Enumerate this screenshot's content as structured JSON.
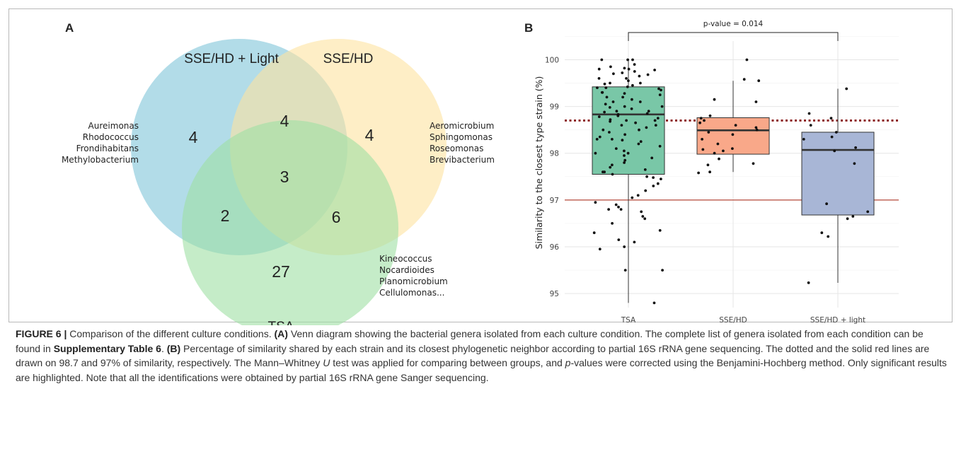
{
  "panel_a": {
    "letter": "A",
    "sets": [
      "SSE/HD + Light",
      "SSE/HD",
      "TSA"
    ],
    "colors": {
      "light": "#7ec4d8",
      "ssehd": "#fde3a0",
      "tsa": "#9edfa4"
    },
    "counts": {
      "light_only": "4",
      "light_ssehd": "4",
      "ssehd_only": "4",
      "all_three": "3",
      "light_tsa": "2",
      "ssehd_tsa": "6",
      "tsa_only": "27"
    },
    "genera_light": [
      "Aureimonas",
      "Rhodococcus",
      "Frondihabitans",
      "Methylobacterium"
    ],
    "genera_ssehd": [
      "Aeromicrobium",
      "Sphingomonas",
      "Roseomonas",
      "Brevibacterium"
    ],
    "genera_tsa": [
      "Kineococcus",
      "Nocardioides",
      "Planomicrobium",
      "Cellulomonas..."
    ]
  },
  "panel_b": {
    "letter": "B",
    "pvalue": "p-value = 0.014",
    "ylabel": "Similarity to the closest type strain (%)"
  },
  "chart_data": {
    "type": "box",
    "categories": [
      "TSA",
      "SSE/HD",
      "SSE/HD + light"
    ],
    "ylabel": "Similarity to the closest type strain (%)",
    "ylim": [
      94.7,
      100.4
    ],
    "yticks": [
      95,
      96,
      97,
      98,
      99,
      100
    ],
    "reference_lines": [
      {
        "value": 98.7,
        "style": "dotted",
        "color": "#8b1a1a"
      },
      {
        "value": 97,
        "style": "solid",
        "color": "#b5483a"
      }
    ],
    "boxes": [
      {
        "category": "TSA",
        "min": 94.8,
        "q1": 97.55,
        "median": 98.83,
        "q3": 99.42,
        "max": 100.0,
        "color": "#79c7a7"
      },
      {
        "category": "SSE/HD",
        "min": 97.6,
        "q1": 97.98,
        "median": 98.49,
        "q3": 98.76,
        "max": 99.55,
        "color": "#f9a889"
      },
      {
        "category": "SSE/HD + light",
        "min": 95.23,
        "q1": 96.68,
        "median": 98.07,
        "q3": 98.45,
        "max": 99.38,
        "color": "#a8b6d6"
      }
    ],
    "points": {
      "TSA": [
        100.0,
        100.0,
        100.0,
        99.85,
        99.82,
        99.8,
        99.8,
        99.78,
        99.75,
        99.72,
        99.7,
        99.68,
        99.65,
        99.6,
        99.55,
        99.5,
        99.5,
        99.48,
        99.45,
        99.42,
        99.4,
        99.4,
        99.38,
        99.35,
        99.3,
        99.28,
        99.25,
        99.2,
        99.2,
        99.15,
        99.1,
        99.1,
        99.05,
        99.0,
        99.0,
        98.98,
        98.95,
        98.9,
        98.88,
        98.85,
        98.83,
        98.8,
        98.78,
        98.75,
        98.72,
        98.7,
        98.7,
        98.68,
        98.65,
        98.6,
        98.55,
        98.5,
        98.5,
        98.45,
        98.4,
        98.35,
        98.3,
        98.28,
        98.25,
        98.2,
        98.15,
        98.1,
        98.05,
        98.0,
        97.95,
        97.9,
        97.85,
        97.8,
        97.75,
        97.7,
        97.65,
        97.6,
        97.55,
        97.5,
        97.48,
        97.45,
        97.35,
        97.3,
        97.2,
        97.1,
        97.05,
        96.95,
        96.9,
        96.85,
        96.8,
        96.8,
        96.75,
        96.6,
        96.5,
        96.35,
        96.3,
        96.15,
        96.1,
        96.0,
        95.95,
        95.5,
        95.5,
        94.8,
        99.9,
        99.6,
        99.3,
        98.9,
        98.6,
        98.3,
        98.0,
        97.6,
        96.65
      ],
      "SSE/HD": [
        100.0,
        99.58,
        99.55,
        99.15,
        99.1,
        98.8,
        98.75,
        98.7,
        98.65,
        98.6,
        98.55,
        98.5,
        98.45,
        98.4,
        98.3,
        98.2,
        98.1,
        98.08,
        98.05,
        98.0,
        97.88,
        97.78,
        97.75,
        97.6,
        97.58
      ],
      "SSE/HD + light": [
        99.38,
        98.85,
        98.75,
        98.6,
        98.45,
        98.35,
        98.3,
        98.12,
        98.05,
        97.78,
        96.92,
        96.75,
        96.65,
        96.6,
        96.3,
        96.22,
        95.23
      ]
    }
  },
  "caption": {
    "figure": "FIGURE 6 |",
    "t1": " Comparison of the different culture conditions. ",
    "a": "(A)",
    "t2": " Venn diagram showing the bacterial genera isolated from each culture condition. The complete list of genera isolated from each condition can be found in ",
    "supp": "Supplementary Table 6",
    "t3": ". ",
    "b": "(B)",
    "t4": " Percentage of similarity shared by each strain and its closest phylogenetic neighbor according to partial 16S rRNA gene sequencing. The dotted and the solid red lines are drawn on 98.7 and 97% of similarity, respectively. The Mann–Whitney ",
    "u": "U",
    "t5": " test was applied for comparing between groups, and ",
    "p": "p",
    "t6": "-values were corrected using the Benjamini-Hochberg method. Only significant results are highlighted. Note that all the identifications were obtained by partial 16S rRNA gene Sanger sequencing."
  }
}
